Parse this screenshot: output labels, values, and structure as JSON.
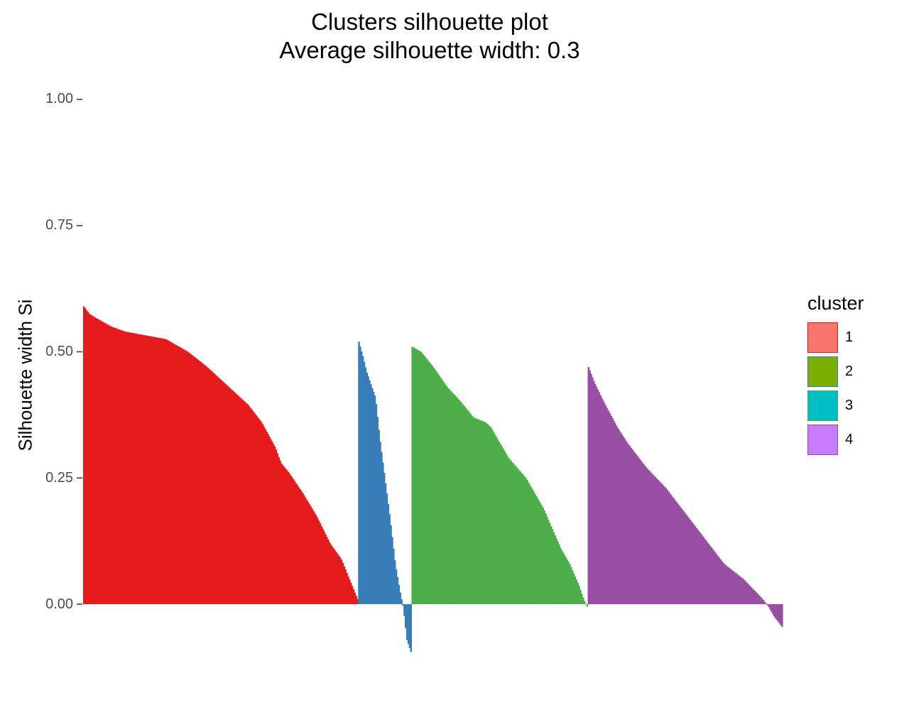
{
  "chart_data": {
    "type": "bar",
    "title": "Clusters silhouette plot",
    "subtitle": "Average silhouette width: 0.3",
    "xlabel": "",
    "ylabel": "Silhouette width Si",
    "ylim": [
      -0.1,
      1.0
    ],
    "yticks": [
      "0.00",
      "0.25",
      "0.50",
      "0.75",
      "1.00"
    ],
    "grid": false,
    "legend": {
      "title": "cluster",
      "position": "right",
      "entries": [
        {
          "label": "1",
          "fill": "#F8766D",
          "border": "#E41A1C"
        },
        {
          "label": "2",
          "fill": "#7CAE00",
          "border": "#377EB8"
        },
        {
          "label": "3",
          "fill": "#00BFC4",
          "border": "#4DAF4A"
        },
        {
          "label": "4",
          "fill": "#C77CFF",
          "border": "#984EA3"
        }
      ]
    },
    "series": [
      {
        "name": "1",
        "color": "#E41A1C",
        "count": 206,
        "profile": [
          [
            0,
            0.59
          ],
          [
            0.02,
            0.575
          ],
          [
            0.05,
            0.565
          ],
          [
            0.1,
            0.55
          ],
          [
            0.15,
            0.54
          ],
          [
            0.2,
            0.535
          ],
          [
            0.3,
            0.525
          ],
          [
            0.38,
            0.5
          ],
          [
            0.45,
            0.47
          ],
          [
            0.5,
            0.445
          ],
          [
            0.55,
            0.42
          ],
          [
            0.6,
            0.395
          ],
          [
            0.65,
            0.36
          ],
          [
            0.7,
            0.31
          ],
          [
            0.72,
            0.28
          ],
          [
            0.75,
            0.26
          ],
          [
            0.8,
            0.22
          ],
          [
            0.85,
            0.175
          ],
          [
            0.9,
            0.12
          ],
          [
            0.94,
            0.09
          ],
          [
            0.97,
            0.05
          ],
          [
            1,
            0.01
          ]
        ]
      },
      {
        "name": "2",
        "color": "#377EB8",
        "count": 40,
        "profile": [
          [
            0,
            0.52
          ],
          [
            0.08,
            0.49
          ],
          [
            0.15,
            0.46
          ],
          [
            0.25,
            0.43
          ],
          [
            0.32,
            0.41
          ],
          [
            0.4,
            0.33
          ],
          [
            0.5,
            0.25
          ],
          [
            0.6,
            0.17
          ],
          [
            0.7,
            0.08
          ],
          [
            0.8,
            0.02
          ],
          [
            0.85,
            -0.005
          ],
          [
            0.88,
            -0.03
          ],
          [
            0.92,
            -0.07
          ],
          [
            1,
            -0.095
          ]
        ]
      },
      {
        "name": "3",
        "color": "#4DAF4A",
        "count": 132,
        "profile": [
          [
            0,
            0.51
          ],
          [
            0.05,
            0.5
          ],
          [
            0.12,
            0.47
          ],
          [
            0.2,
            0.43
          ],
          [
            0.28,
            0.4
          ],
          [
            0.35,
            0.37
          ],
          [
            0.42,
            0.36
          ],
          [
            0.45,
            0.35
          ],
          [
            0.5,
            0.32
          ],
          [
            0.55,
            0.29
          ],
          [
            0.6,
            0.27
          ],
          [
            0.65,
            0.25
          ],
          [
            0.7,
            0.22
          ],
          [
            0.75,
            0.19
          ],
          [
            0.8,
            0.15
          ],
          [
            0.85,
            0.11
          ],
          [
            0.9,
            0.08
          ],
          [
            0.95,
            0.04
          ],
          [
            0.98,
            0.01
          ],
          [
            1,
            -0.005
          ]
        ]
      },
      {
        "name": "4",
        "color": "#984EA3",
        "count": 146,
        "profile": [
          [
            0,
            0.47
          ],
          [
            0.03,
            0.44
          ],
          [
            0.08,
            0.4
          ],
          [
            0.15,
            0.35
          ],
          [
            0.2,
            0.32
          ],
          [
            0.3,
            0.27
          ],
          [
            0.4,
            0.23
          ],
          [
            0.5,
            0.18
          ],
          [
            0.6,
            0.13
          ],
          [
            0.7,
            0.08
          ],
          [
            0.8,
            0.05
          ],
          [
            0.85,
            0.03
          ],
          [
            0.9,
            0.01
          ],
          [
            0.93,
            -0.005
          ],
          [
            0.96,
            -0.025
          ],
          [
            1,
            -0.045
          ]
        ]
      }
    ]
  }
}
